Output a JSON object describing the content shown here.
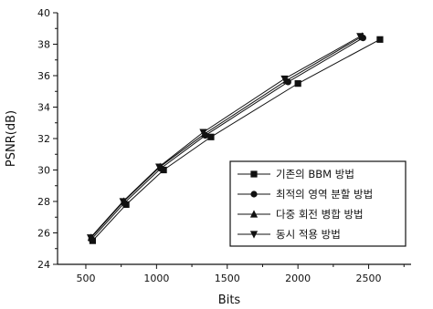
{
  "chart_data": {
    "type": "line",
    "title": "",
    "xlabel": "Bits",
    "ylabel": "PSNR(dB)",
    "xlim": [
      300,
      2800
    ],
    "ylim": [
      24,
      40
    ],
    "x_ticks": [
      500,
      1000,
      1500,
      2000,
      2500
    ],
    "y_ticks": [
      24,
      26,
      28,
      30,
      32,
      34,
      36,
      38,
      40
    ],
    "grid": false,
    "legend_position": "lower-right",
    "series": [
      {
        "name": "기존의 BBM 방법",
        "marker": "square",
        "x": [
          548,
          785,
          1050,
          1385,
          2000,
          2580
        ],
        "y": [
          25.5,
          27.8,
          30.0,
          32.1,
          35.5,
          38.3
        ]
      },
      {
        "name": "최적의 영역 분할 방법",
        "marker": "circle",
        "x": [
          540,
          772,
          1030,
          1345,
          1930,
          2460
        ],
        "y": [
          25.6,
          27.9,
          30.1,
          32.2,
          35.6,
          38.4
        ]
      },
      {
        "name": "다중 회전 병합 방법",
        "marker": "triangle-up",
        "x": [
          538,
          768,
          1025,
          1340,
          1920,
          2455
        ],
        "y": [
          25.7,
          28.0,
          30.2,
          32.3,
          35.7,
          38.5
        ]
      },
      {
        "name": "동시 적용 방법",
        "marker": "triangle-down",
        "x": [
          533,
          763,
          1018,
          1330,
          1905,
          2440
        ],
        "y": [
          25.7,
          28.0,
          30.2,
          32.4,
          35.8,
          38.5
        ]
      }
    ]
  }
}
